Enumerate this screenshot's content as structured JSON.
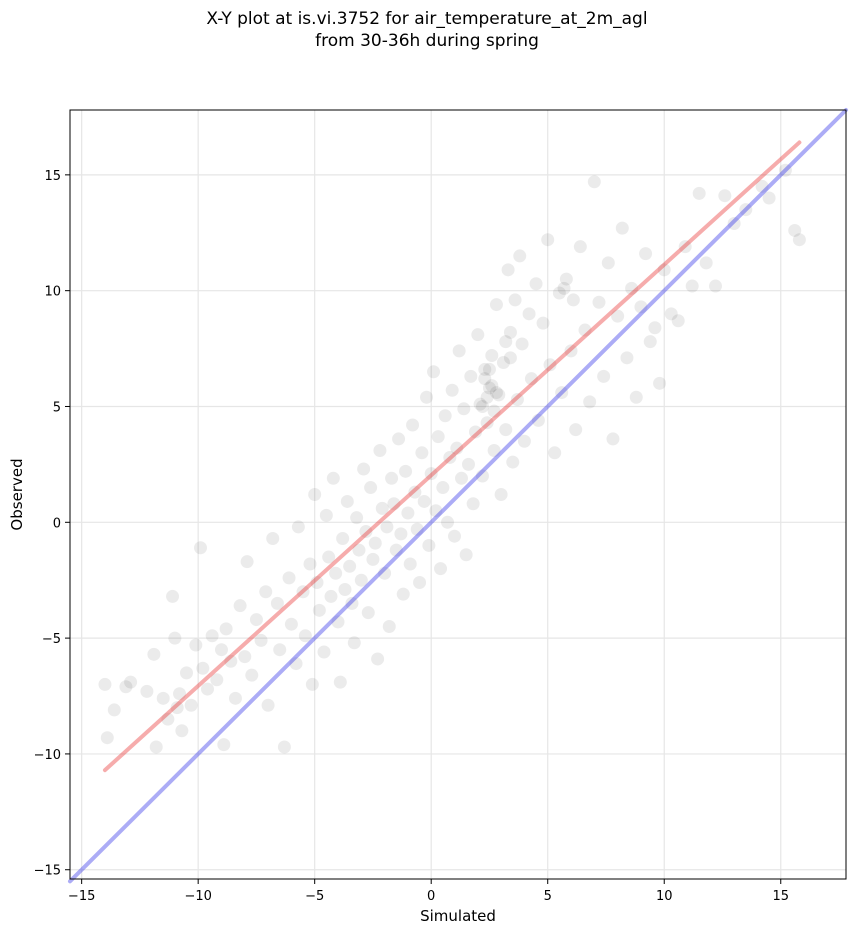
{
  "chart_data": {
    "type": "scatter",
    "title_line1": "X-Y plot at is.vi.3752 for air_temperature_at_2m_agl",
    "title_line2": "from 30-36h during spring",
    "xlabel": "Simulated",
    "ylabel": "Observed",
    "xlim": [
      -15.5,
      17.8
    ],
    "ylim": [
      -15.4,
      17.8
    ],
    "xticks": [
      -15,
      -10,
      -5,
      0,
      5,
      10,
      15
    ],
    "yticks": [
      -15,
      -10,
      -5,
      0,
      5,
      10,
      15
    ],
    "xtick_labels": [
      "−15",
      "−10",
      "−5",
      "0",
      "5",
      "10",
      "15"
    ],
    "ytick_labels": [
      "−15",
      "−10",
      "−5",
      "0",
      "5",
      "10",
      "15"
    ],
    "grid": true,
    "point_color": "#000000",
    "point_alpha": 0.08,
    "points": [
      [
        -14,
        -7.0
      ],
      [
        -13.9,
        -9.3
      ],
      [
        -13.6,
        -8.1
      ],
      [
        -13.1,
        -7.1
      ],
      [
        -12.9,
        -6.9
      ],
      [
        -12.2,
        -7.3
      ],
      [
        -11.9,
        -5.7
      ],
      [
        -11.8,
        -9.7
      ],
      [
        -11.5,
        -7.6
      ],
      [
        -11.3,
        -8.5
      ],
      [
        -11.1,
        -3.2
      ],
      [
        -11.0,
        -5.0
      ],
      [
        -10.9,
        -8.0
      ],
      [
        -10.8,
        -7.4
      ],
      [
        -10.7,
        -9.0
      ],
      [
        -10.5,
        -6.5
      ],
      [
        -10.3,
        -7.9
      ],
      [
        -10.1,
        -5.3
      ],
      [
        -9.9,
        -1.1
      ],
      [
        -9.8,
        -6.3
      ],
      [
        -9.6,
        -7.2
      ],
      [
        -9.4,
        -4.9
      ],
      [
        -9.2,
        -6.8
      ],
      [
        -9.0,
        -5.5
      ],
      [
        -8.9,
        -9.6
      ],
      [
        -8.8,
        -4.6
      ],
      [
        -8.6,
        -6.0
      ],
      [
        -8.4,
        -7.6
      ],
      [
        -8.2,
        -3.6
      ],
      [
        -8.0,
        -5.8
      ],
      [
        -7.9,
        -1.7
      ],
      [
        -7.7,
        -6.6
      ],
      [
        -7.5,
        -4.2
      ],
      [
        -7.3,
        -5.1
      ],
      [
        -7.1,
        -3.0
      ],
      [
        -7.0,
        -7.9
      ],
      [
        -6.8,
        -0.7
      ],
      [
        -6.6,
        -3.5
      ],
      [
        -6.5,
        -5.5
      ],
      [
        -6.3,
        -9.7
      ],
      [
        -6.1,
        -2.4
      ],
      [
        -6.0,
        -4.4
      ],
      [
        -5.8,
        -6.1
      ],
      [
        -5.7,
        -0.2
      ],
      [
        -5.5,
        -3.0
      ],
      [
        -5.4,
        -4.9
      ],
      [
        -5.2,
        -1.8
      ],
      [
        -5.1,
        -7.0
      ],
      [
        -5.0,
        1.2
      ],
      [
        -4.9,
        -2.6
      ],
      [
        -4.8,
        -3.8
      ],
      [
        -4.6,
        -5.6
      ],
      [
        -4.5,
        0.3
      ],
      [
        -4.4,
        -1.5
      ],
      [
        -4.3,
        -3.2
      ],
      [
        -4.2,
        1.9
      ],
      [
        -4.1,
        -2.2
      ],
      [
        -4.0,
        -4.3
      ],
      [
        -3.9,
        -6.9
      ],
      [
        -3.8,
        -0.7
      ],
      [
        -3.7,
        -2.9
      ],
      [
        -3.6,
        0.9
      ],
      [
        -3.5,
        -1.9
      ],
      [
        -3.4,
        -3.5
      ],
      [
        -3.3,
        -5.2
      ],
      [
        -3.2,
        0.2
      ],
      [
        -3.1,
        -1.2
      ],
      [
        -3.0,
        -2.5
      ],
      [
        -2.9,
        2.3
      ],
      [
        -2.8,
        -0.4
      ],
      [
        -2.7,
        -3.9
      ],
      [
        -2.6,
        1.5
      ],
      [
        -2.5,
        -1.6
      ],
      [
        -2.4,
        -0.9
      ],
      [
        -2.3,
        -5.9
      ],
      [
        -2.2,
        3.1
      ],
      [
        -2.1,
        0.6
      ],
      [
        -2.0,
        -2.2
      ],
      [
        -1.9,
        -0.2
      ],
      [
        -1.8,
        -4.5
      ],
      [
        -1.7,
        1.9
      ],
      [
        -1.6,
        0.8
      ],
      [
        -1.5,
        -1.2
      ],
      [
        -1.4,
        3.6
      ],
      [
        -1.3,
        -0.5
      ],
      [
        -1.2,
        -3.1
      ],
      [
        -1.1,
        2.2
      ],
      [
        -1.0,
        0.4
      ],
      [
        -0.9,
        -1.8
      ],
      [
        -0.8,
        4.2
      ],
      [
        -0.7,
        1.3
      ],
      [
        -0.6,
        -0.3
      ],
      [
        -0.5,
        -2.6
      ],
      [
        -0.4,
        3.0
      ],
      [
        -0.3,
        0.9
      ],
      [
        -0.2,
        5.4
      ],
      [
        -0.1,
        -1.0
      ],
      [
        0.0,
        2.1
      ],
      [
        0.1,
        6.5
      ],
      [
        0.2,
        0.5
      ],
      [
        0.3,
        3.7
      ],
      [
        0.4,
        -2.0
      ],
      [
        0.5,
        1.5
      ],
      [
        0.6,
        4.6
      ],
      [
        0.7,
        0.0
      ],
      [
        0.8,
        2.8
      ],
      [
        0.9,
        5.7
      ],
      [
        1.0,
        -0.6
      ],
      [
        1.1,
        3.2
      ],
      [
        1.2,
        7.4
      ],
      [
        1.3,
        1.9
      ],
      [
        1.4,
        4.9
      ],
      [
        1.5,
        -1.4
      ],
      [
        1.6,
        2.5
      ],
      [
        1.7,
        6.3
      ],
      [
        1.8,
        0.8
      ],
      [
        1.9,
        3.9
      ],
      [
        2.0,
        8.1
      ],
      [
        2.1,
        5.1
      ],
      [
        2.2,
        2.0
      ],
      [
        2.3,
        6.6
      ],
      [
        2.4,
        4.3
      ],
      [
        2.5,
        5.8
      ],
      [
        2.6,
        7.2
      ],
      [
        2.7,
        3.1
      ],
      [
        2.8,
        9.4
      ],
      [
        2.9,
        5.5
      ],
      [
        3.0,
        1.2
      ],
      [
        3.1,
        6.9
      ],
      [
        3.2,
        4.0
      ],
      [
        3.3,
        10.9
      ],
      [
        3.4,
        8.2
      ],
      [
        3.5,
        2.6
      ],
      [
        3.6,
        9.6
      ],
      [
        3.7,
        5.3
      ],
      [
        3.8,
        11.5
      ],
      [
        3.9,
        7.7
      ],
      [
        4.0,
        3.5
      ],
      [
        4.2,
        9.0
      ],
      [
        4.3,
        6.2
      ],
      [
        4.5,
        10.3
      ],
      [
        4.6,
        4.4
      ],
      [
        4.8,
        8.6
      ],
      [
        5.0,
        12.2
      ],
      [
        5.1,
        6.8
      ],
      [
        5.3,
        3.0
      ],
      [
        5.5,
        9.9
      ],
      [
        5.6,
        5.6
      ],
      [
        5.8,
        10.5
      ],
      [
        6.0,
        7.4
      ],
      [
        6.2,
        4.0
      ],
      [
        6.4,
        11.9
      ],
      [
        6.6,
        8.3
      ],
      [
        6.8,
        5.2
      ],
      [
        7.0,
        14.7
      ],
      [
        7.2,
        9.5
      ],
      [
        7.4,
        6.3
      ],
      [
        7.6,
        11.2
      ],
      [
        7.8,
        3.6
      ],
      [
        8.0,
        8.9
      ],
      [
        8.2,
        12.7
      ],
      [
        8.4,
        7.1
      ],
      [
        8.6,
        10.1
      ],
      [
        8.8,
        5.4
      ],
      [
        9.0,
        9.3
      ],
      [
        9.2,
        11.6
      ],
      [
        9.4,
        7.8
      ],
      [
        9.6,
        8.4
      ],
      [
        9.8,
        6.0
      ],
      [
        10.0,
        10.9
      ],
      [
        10.3,
        9.0
      ],
      [
        10.6,
        8.7
      ],
      [
        10.9,
        11.9
      ],
      [
        11.2,
        10.2
      ],
      [
        11.5,
        14.2
      ],
      [
        11.8,
        11.2
      ],
      [
        12.2,
        10.2
      ],
      [
        12.6,
        14.1
      ],
      [
        13.0,
        12.9
      ],
      [
        13.5,
        13.5
      ],
      [
        14.2,
        14.5
      ],
      [
        15.2,
        15.2
      ],
      [
        15.8,
        12.2
      ],
      [
        15.6,
        12.6
      ],
      [
        14.5,
        14.0
      ],
      [
        2.4,
        5.4
      ],
      [
        2.6,
        5.9
      ],
      [
        2.3,
        6.2
      ],
      [
        2.7,
        4.8
      ],
      [
        2.5,
        6.6
      ],
      [
        2.2,
        5.0
      ],
      [
        2.8,
        5.6
      ],
      [
        3.2,
        7.8
      ],
      [
        3.4,
        7.1
      ],
      [
        5.7,
        10.1
      ],
      [
        6.1,
        9.6
      ]
    ]
  },
  "lines": [
    {
      "color": "#e83030",
      "alpha": 0.4,
      "x": [
        -14.0,
        15.8
      ],
      "y": [
        -10.7,
        16.4
      ]
    },
    {
      "color": "#3030e8",
      "alpha": 0.4,
      "x": [
        -15.5,
        17.8
      ],
      "y": [
        -15.5,
        17.8
      ]
    }
  ]
}
